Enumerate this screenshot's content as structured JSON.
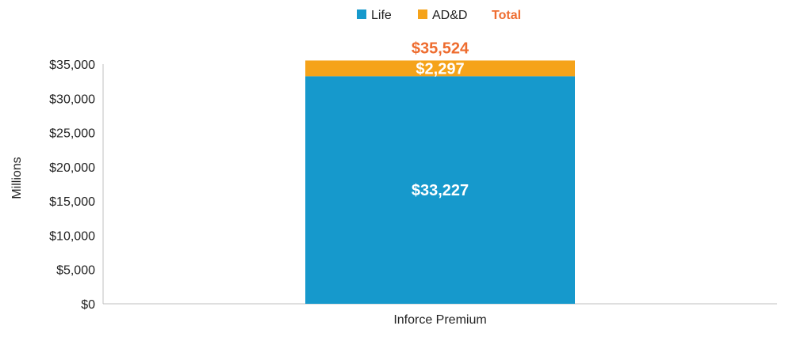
{
  "chart_data": {
    "type": "bar",
    "stacked": true,
    "title": "",
    "xlabel": "",
    "ylabel": "Millions",
    "ylim": [
      0,
      35000
    ],
    "ytick_values": [
      0,
      5000,
      10000,
      15000,
      20000,
      25000,
      30000,
      35000
    ],
    "ytick_labels": [
      "$0",
      "$5,000",
      "$10,000",
      "$15,000",
      "$20,000",
      "$25,000",
      "$30,000",
      "$35,000"
    ],
    "categories": [
      "Inforce Premium"
    ],
    "series": [
      {
        "name": "Life",
        "color": "#1699cc",
        "values": [
          33227
        ],
        "labels": [
          "$33,227"
        ]
      },
      {
        "name": "AD&D",
        "color": "#f5a31a",
        "values": [
          2297
        ],
        "labels": [
          "$2,297"
        ]
      }
    ],
    "total": {
      "name": "Total",
      "color": "#ee6c2f",
      "values": [
        35524
      ],
      "labels": [
        "$35,524"
      ]
    },
    "legend_position": "top-center",
    "grid": false
  }
}
